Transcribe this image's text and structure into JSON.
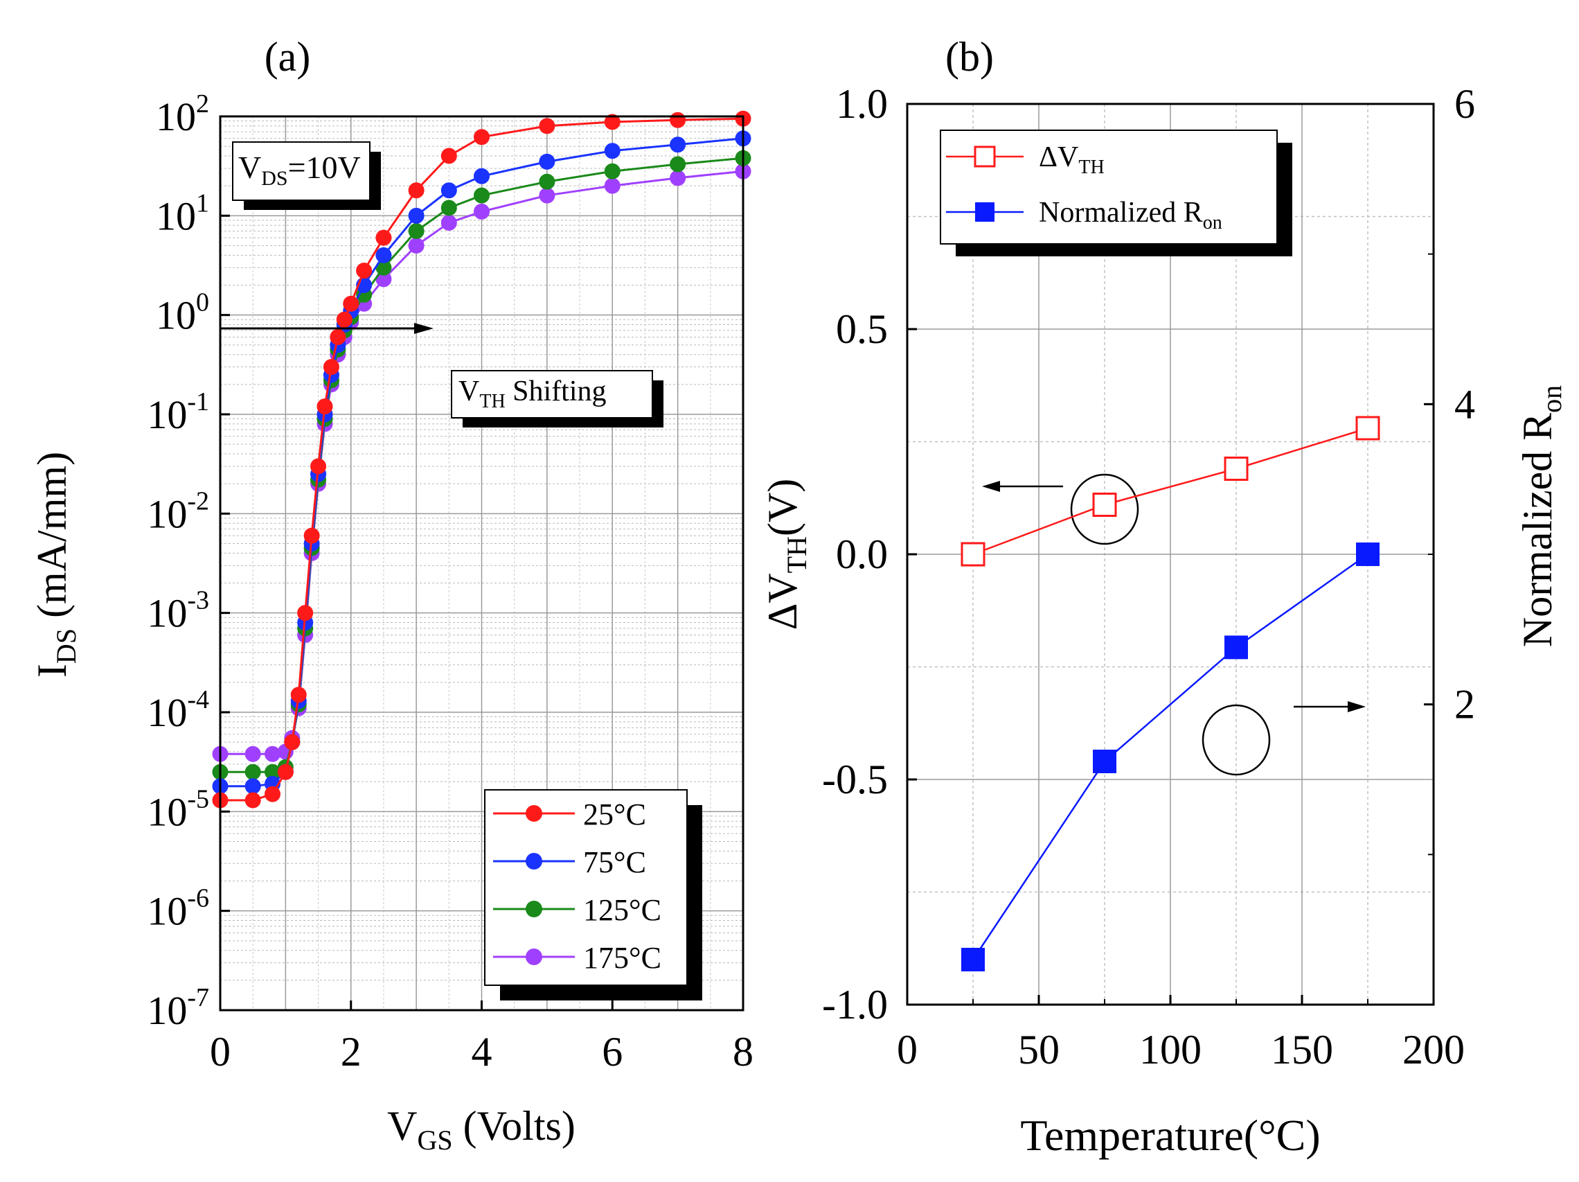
{
  "chart_data": [
    {
      "type": "line",
      "panel_label": "(a)",
      "xlabel": {
        "main": "V",
        "sub": "GS",
        "rest": " (Volts)"
      },
      "ylabel": {
        "main": "I",
        "sub": "DS",
        "rest": " (mA/mm)"
      },
      "y_scale": "log",
      "xlim": [
        0,
        8
      ],
      "ylim": [
        1e-07,
        100
      ],
      "x_ticks": [
        "0",
        "2",
        "4",
        "6",
        "8"
      ],
      "y_ticks": [
        {
          "value": 100,
          "base": "10",
          "exp": "2"
        },
        {
          "value": 10,
          "base": "10",
          "exp": "1"
        },
        {
          "value": 1,
          "base": "10",
          "exp": "0"
        },
        {
          "value": 0.1,
          "base": "10",
          "exp": "-1"
        },
        {
          "value": 0.01,
          "base": "10",
          "exp": "-2"
        },
        {
          "value": 0.001,
          "base": "10",
          "exp": "-3"
        },
        {
          "value": 0.0001,
          "base": "10",
          "exp": "-4"
        },
        {
          "value": 1e-05,
          "base": "10",
          "exp": "-5"
        },
        {
          "value": 1e-06,
          "base": "10",
          "exp": "-6"
        },
        {
          "value": 1e-07,
          "base": "10",
          "exp": "-7"
        }
      ],
      "grid": true,
      "x": [
        0,
        0.5,
        0.8,
        1.0,
        1.1,
        1.2,
        1.3,
        1.4,
        1.5,
        1.6,
        1.7,
        1.8,
        1.9,
        2.0,
        2.2,
        2.5,
        3.0,
        3.5,
        4.0,
        5.0,
        6.0,
        7.0,
        8.0
      ],
      "series": [
        {
          "name": "25°C",
          "color": "#ff1a1a",
          "values": [
            1.3e-05,
            1.3e-05,
            1.5e-05,
            2.5e-05,
            5e-05,
            0.00015,
            0.001,
            0.006,
            0.03,
            0.12,
            0.3,
            0.6,
            0.9,
            1.3,
            2.8,
            6,
            18,
            40,
            62,
            80,
            88,
            92,
            95
          ]
        },
        {
          "name": "75°C",
          "color": "#1a33ff",
          "values": [
            1.8e-05,
            1.8e-05,
            1.9e-05,
            2.5e-05,
            5e-05,
            0.00013,
            0.0008,
            0.005,
            0.025,
            0.1,
            0.25,
            0.5,
            0.8,
            1.1,
            2.0,
            4,
            10,
            18,
            25,
            35,
            45,
            52,
            60
          ]
        },
        {
          "name": "125°C",
          "color": "#1a8a1a",
          "values": [
            2.5e-05,
            2.5e-05,
            2.5e-05,
            2.8e-05,
            5e-05,
            0.00012,
            0.0007,
            0.0045,
            0.022,
            0.09,
            0.22,
            0.45,
            0.7,
            0.95,
            1.6,
            3,
            7,
            12,
            16,
            22,
            28,
            33,
            38
          ]
        },
        {
          "name": "175°C",
          "color": "#a040ff",
          "values": [
            3.8e-05,
            3.8e-05,
            3.8e-05,
            4e-05,
            5.5e-05,
            0.00011,
            0.0006,
            0.004,
            0.02,
            0.08,
            0.2,
            0.4,
            0.6,
            0.85,
            1.3,
            2.3,
            5,
            8.5,
            11,
            16,
            20,
            24,
            28
          ]
        }
      ],
      "annotations": [
        {
          "main": "V",
          "sub": "DS",
          "rest": "=10V"
        },
        {
          "main": "V",
          "sub": "TH",
          "rest": " Shifting"
        }
      ],
      "legend_position": "bottom-right"
    },
    {
      "type": "line",
      "panel_label": "(b)",
      "xlabel": "Temperature(°C)",
      "ylabel_left": {
        "pre": "ΔV",
        "sub": "TH",
        "rest": "(V)"
      },
      "ylabel_right": {
        "main": "Normalized R",
        "sub": "on"
      },
      "xlim": [
        0,
        200
      ],
      "ylim_left": [
        -1.0,
        1.0
      ],
      "ylim_right": [
        0,
        6
      ],
      "x_ticks": [
        "0",
        "50",
        "100",
        "150",
        "200"
      ],
      "y_ticks_left": [
        "1.0",
        "0.5",
        "0.0",
        "-0.5",
        "-1.0"
      ],
      "y_ticks_right": [
        "6",
        "4",
        "2"
      ],
      "grid": true,
      "x": [
        25,
        75,
        125,
        175
      ],
      "series": [
        {
          "name": "ΔV",
          "name_sub": "TH",
          "axis": "left",
          "marker": "open-square",
          "color": "#ff1a1a",
          "values": [
            0.0,
            0.11,
            0.19,
            0.28
          ]
        },
        {
          "name": "Normalized R",
          "name_sub": "on",
          "axis": "right",
          "marker": "filled-square",
          "color": "#0a1aff",
          "values": [
            0.3,
            1.62,
            2.38,
            3.0
          ]
        }
      ],
      "legend_position": "top-left"
    }
  ]
}
